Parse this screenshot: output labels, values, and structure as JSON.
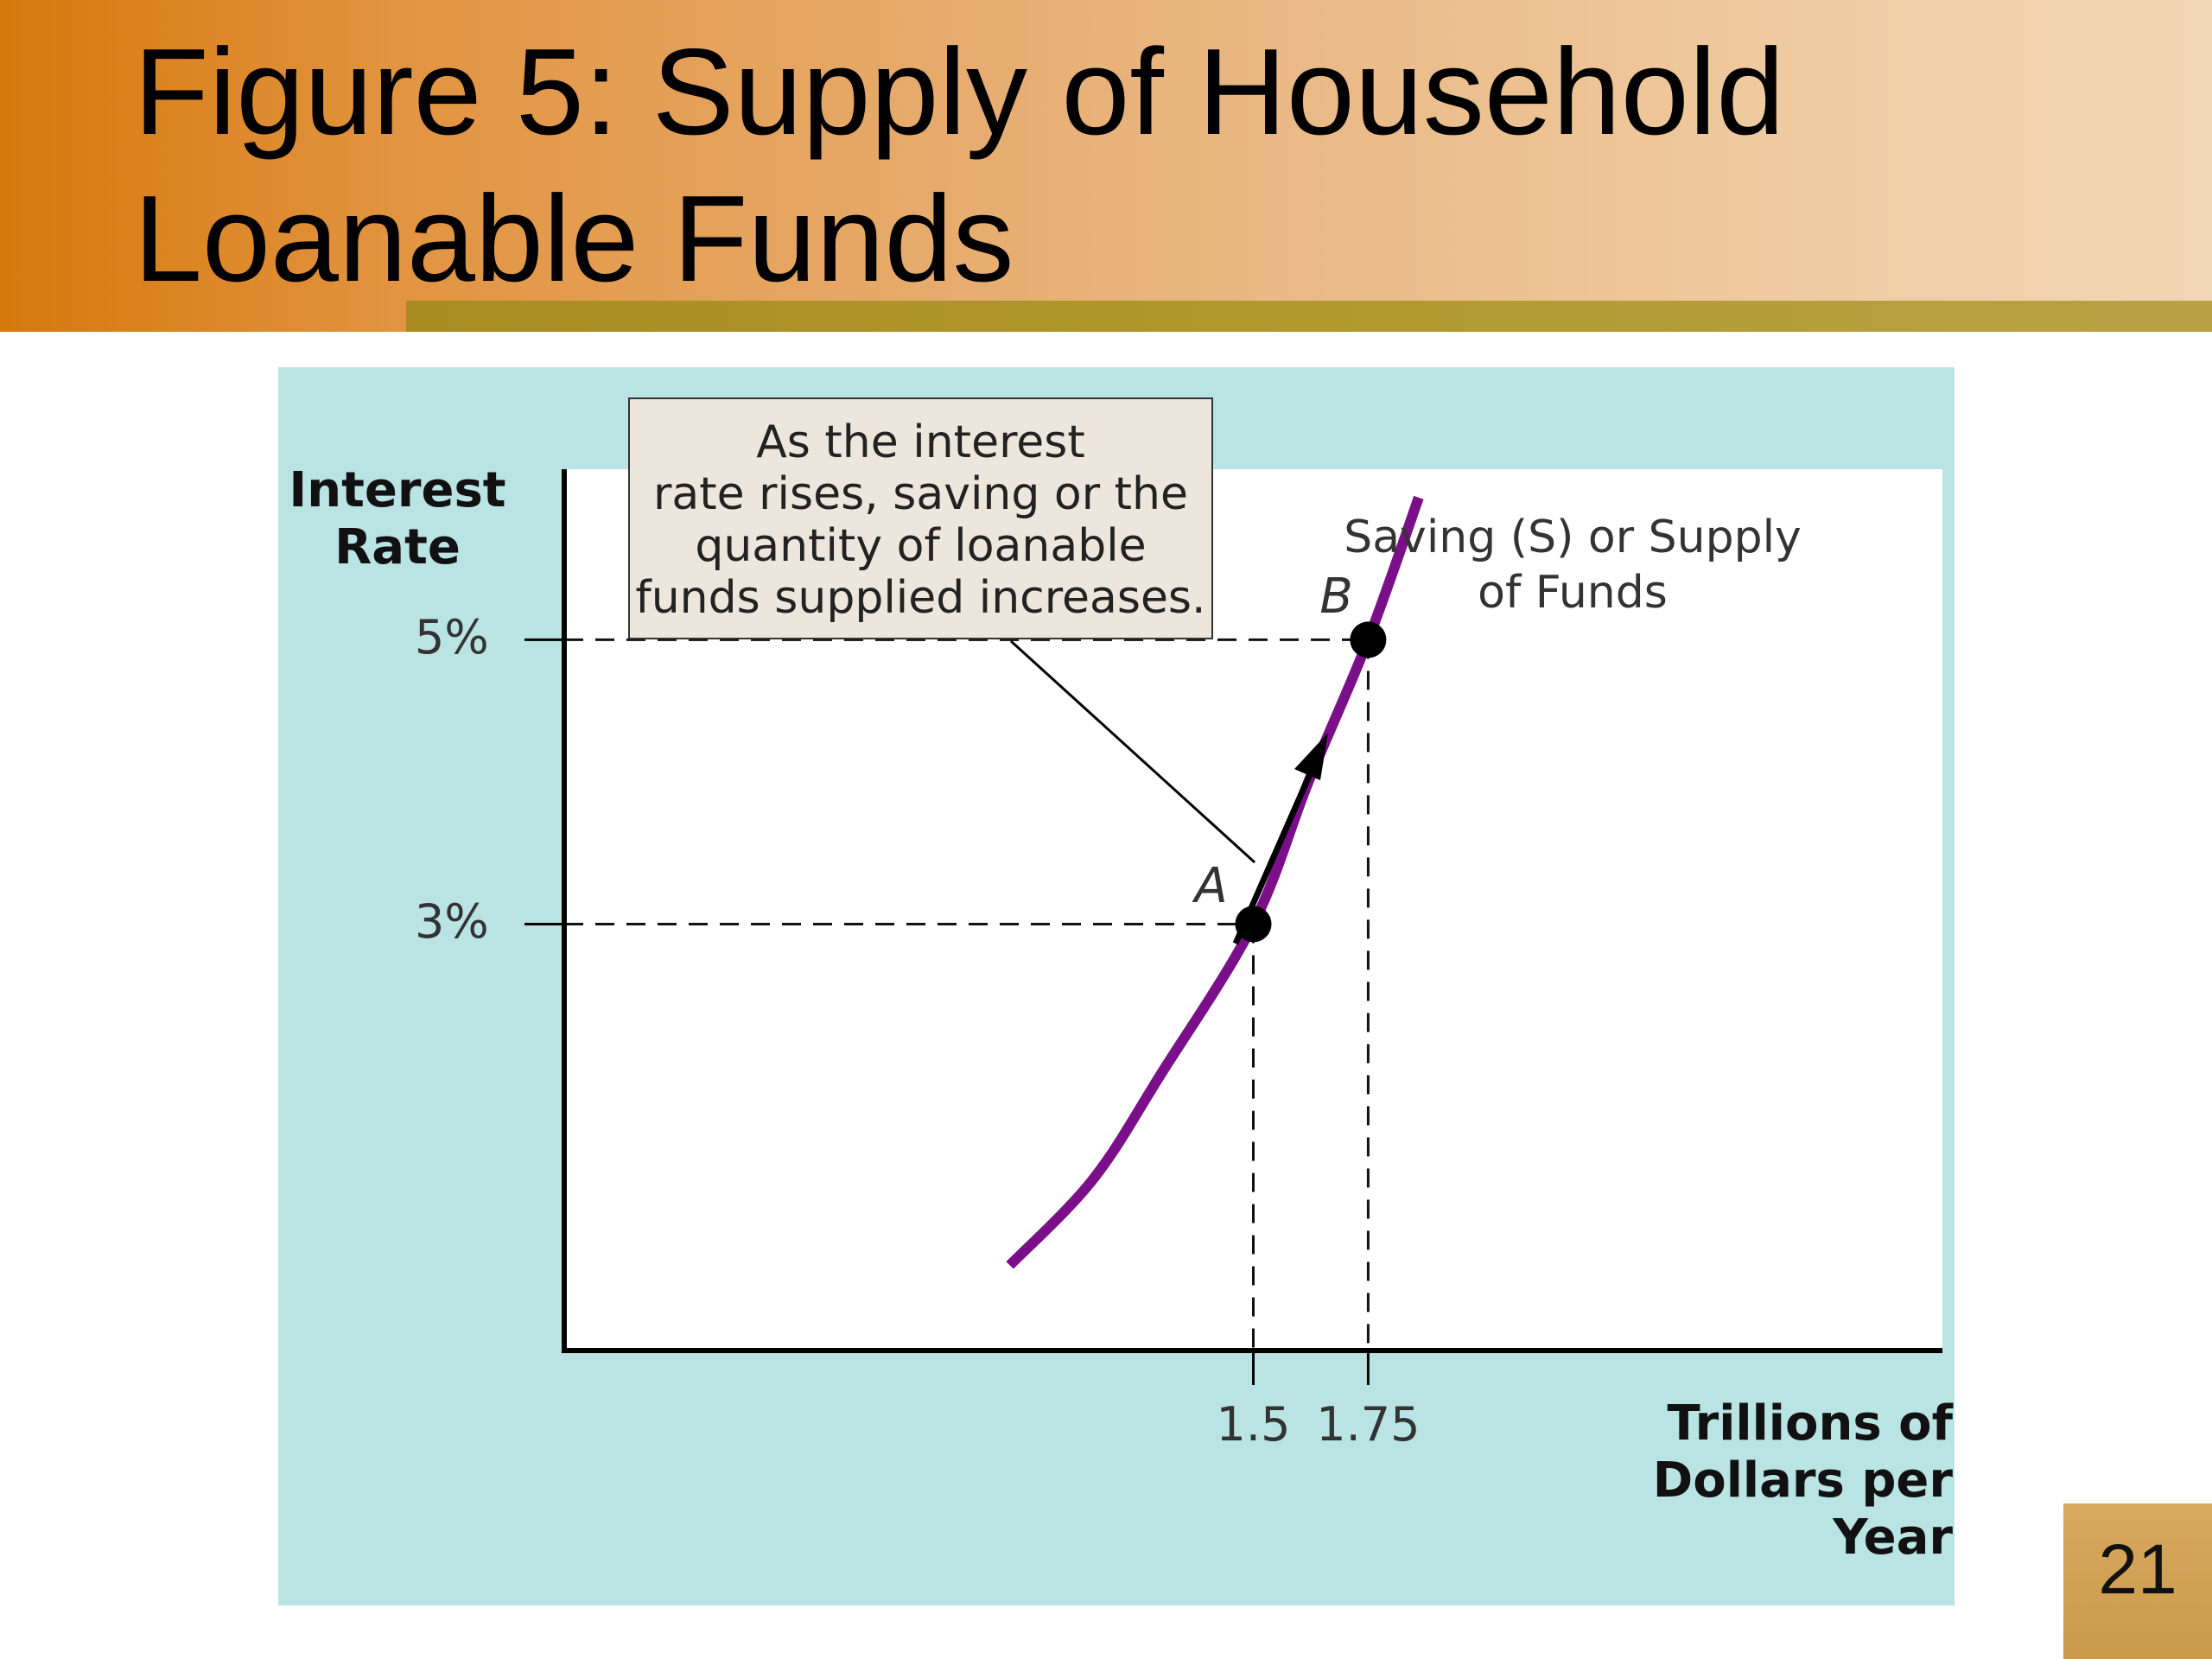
{
  "slide": {
    "title": "Figure 5:  Supply of Household Loanable Funds",
    "page_number": "21"
  },
  "chart_data": {
    "type": "line",
    "xlabel": "Trillions of Dollars per Year",
    "ylabel": "Interest Rate",
    "x_ticks": [
      {
        "value": 1.5,
        "label": "1.5"
      },
      {
        "value": 1.75,
        "label": "1.75"
      }
    ],
    "y_ticks": [
      {
        "value": 3,
        "label": "3%"
      },
      {
        "value": 5,
        "label": "5%"
      }
    ],
    "xlim": [
      0,
      3.0
    ],
    "ylim": [
      0,
      6.2
    ],
    "series": [
      {
        "name": "Saving (S) or Supply of Funds",
        "color": "#7b0f8a",
        "points": [
          [
            0.97,
            0.6
          ],
          [
            1.15,
            1.2
          ],
          [
            1.3,
            1.95
          ],
          [
            1.5,
            3.0
          ],
          [
            1.62,
            4.0
          ],
          [
            1.75,
            5.0
          ],
          [
            1.86,
            6.0
          ]
        ]
      }
    ],
    "points": [
      {
        "label": "A",
        "x": 1.5,
        "y": 3
      },
      {
        "label": "B",
        "x": 1.75,
        "y": 5
      }
    ],
    "annotations": {
      "callout": "As the interest rate rises, saving or the quantity of loanable funds supplied increases.",
      "callout_lines": [
        "As the interest",
        "rate rises, saving or the",
        "quantity of loanable",
        "funds supplied increases."
      ],
      "curve_label_lines": [
        "Saving (S) or Supply",
        "of Funds"
      ]
    },
    "grid": false,
    "colors": {
      "panel": "#bae4e4",
      "curve": "#7b0f8a",
      "callout": "#ede6dc"
    }
  }
}
